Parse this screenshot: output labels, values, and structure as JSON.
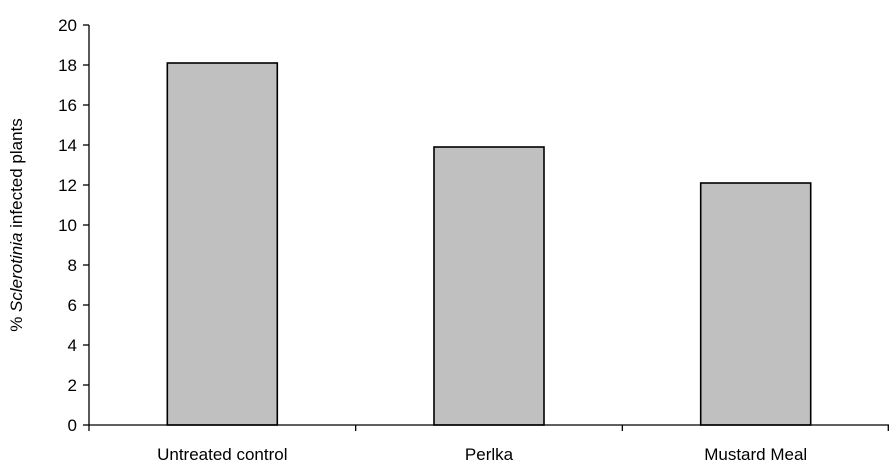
{
  "chart_data": {
    "type": "bar",
    "categories": [
      "Untreated control",
      "Perlka",
      "Mustard Meal"
    ],
    "values": [
      18.1,
      13.9,
      12.1
    ],
    "title": "",
    "xlabel": "",
    "ylabel": {
      "prefix": "% ",
      "italic": "Sclerotinia",
      "suffix": "  infected plants"
    },
    "ylim": [
      0,
      20
    ],
    "yticks": [
      "0",
      "2",
      "4",
      "6",
      "8",
      "10",
      "12",
      "14",
      "16",
      "18",
      "20"
    ],
    "grid": false,
    "legend": "none",
    "colors": {
      "bar_fill": "#c0c0c0",
      "bar_edge": "#000000",
      "axis": "#000000",
      "background": "#ffffff"
    }
  }
}
